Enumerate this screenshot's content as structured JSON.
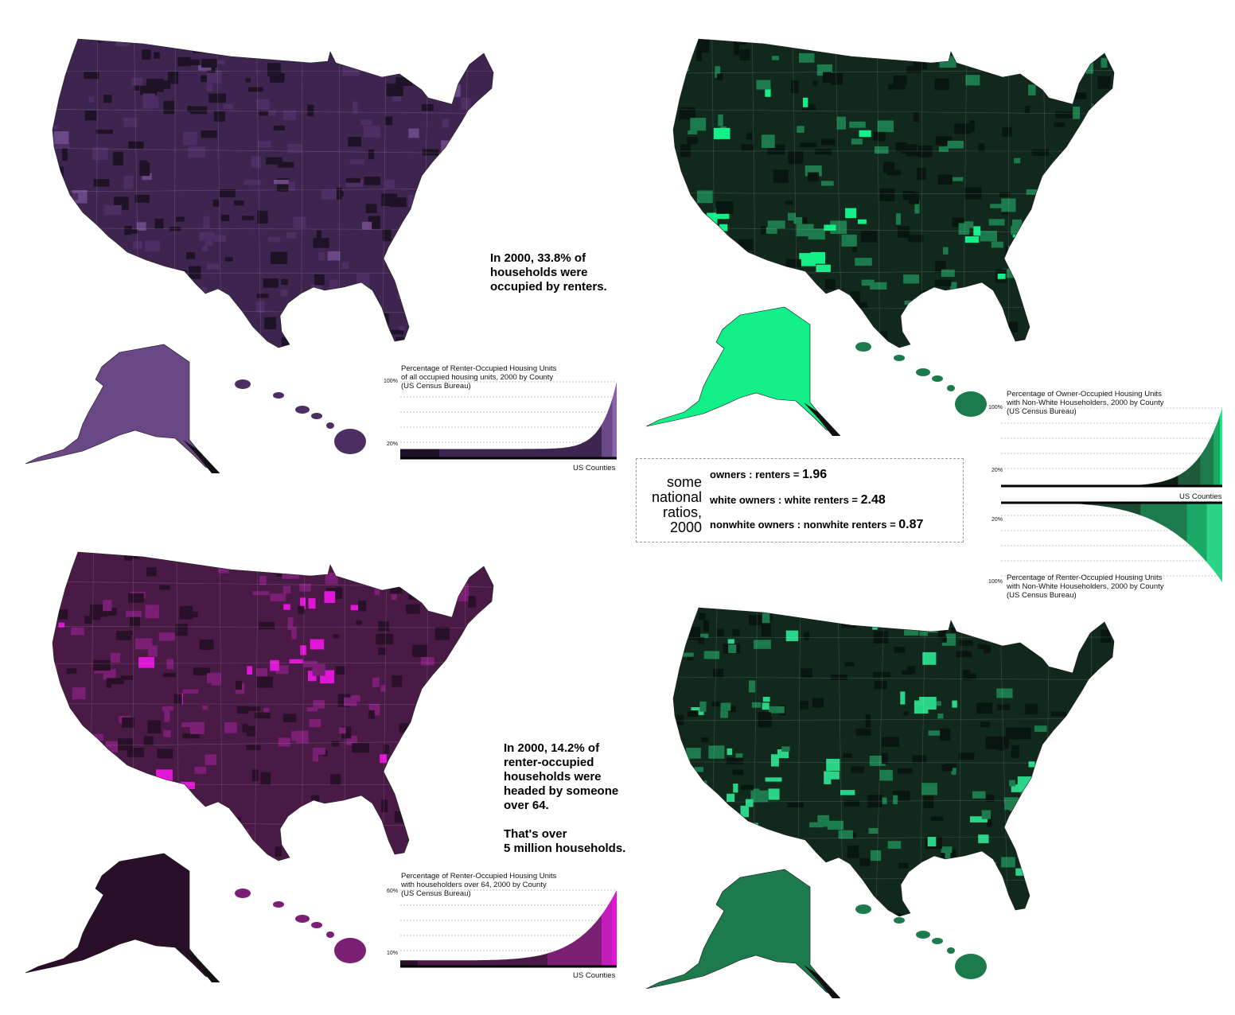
{
  "panels": [
    {
      "id": "renters",
      "colors": {
        "base": "#3e2550",
        "dark": "#1e1226",
        "mid": "#4c2e63",
        "light": "#6a4886"
      },
      "callout": "In 2000, 33.8% of\nhouseholds were\noccupied by renters.",
      "chart": {
        "title": "Percentage of Renter-Occupied Housing Units\nof all occupied housing units, 2000 by County\n(US Census Bureau)",
        "top_tick": "100%",
        "low_tick": "20%",
        "xlabel": "US Counties"
      }
    },
    {
      "id": "over64",
      "colors": {
        "base": "#4a1a46",
        "dark": "#2a0f28",
        "mid": "#7a1f74",
        "light": "#e016d6"
      },
      "callout": "In 2000, 14.2% of\nrenter-occupied\nhouseholds were\nheaded by someone\nover 64.\n\nThat's over\n5 million households.",
      "chart": {
        "title": "Percentage of Renter-Occupied Housing Units\nwith householders over 64, 2000 by County\n(US Census Bureau)",
        "top_tick": "60%",
        "low_tick": "10%",
        "xlabel": "US Counties"
      }
    },
    {
      "id": "owner-nonwhite",
      "colors": {
        "base": "#10291c",
        "dark": "#081510",
        "mid": "#1c7a4c",
        "light": "#13f08a"
      },
      "chart": {
        "title": "Percentage of Owner-Occupied Housing Units\nwith Non-White Householders, 2000 by County\n(US Census Bureau)",
        "top_tick": "100%",
        "low_tick": "20%",
        "xlabel": "US Counties"
      }
    },
    {
      "id": "renter-nonwhite",
      "colors": {
        "base": "#10291c",
        "dark": "#081510",
        "mid": "#1c7a4c",
        "light": "#2ad488"
      },
      "chart": {
        "title": "Percentage of Renter-Occupied Housing Units\nwith Non-White Householders, 2000 by County\n(US Census Bureau)",
        "top_tick": "100%",
        "low_tick": "20%"
      }
    }
  ],
  "ratios": {
    "heading": "some\nnational\nratios,\n2000",
    "items": [
      {
        "label": "owners : renters = ",
        "value": "1.96"
      },
      {
        "label": "white owners : white renters = ",
        "value": "2.48"
      },
      {
        "label": "nonwhite owners : nonwhite renters = ",
        "value": "0.87"
      }
    ]
  }
}
